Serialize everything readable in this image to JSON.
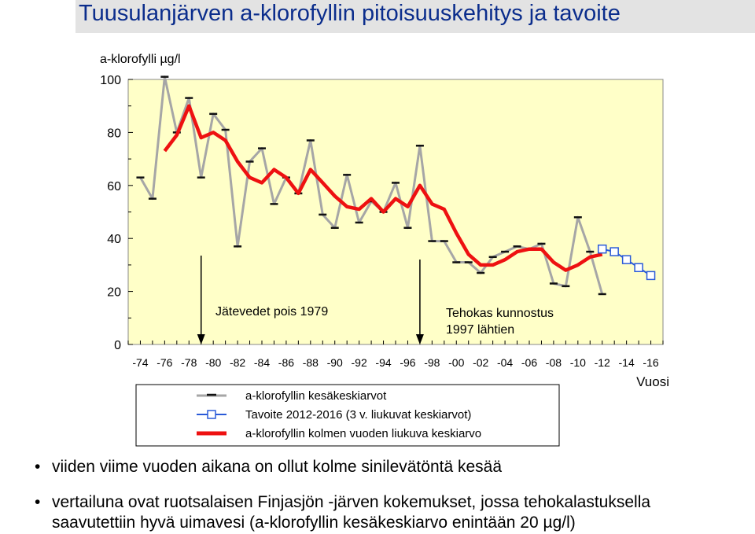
{
  "title": "Tuusulanjärven a-klorofyllin pitoisuuskehitys ja tavoite",
  "chart_data": {
    "type": "line",
    "ylabel": "a-klorofylli µg/l",
    "xlabel": "Vuosi",
    "ylim": [
      0,
      100
    ],
    "y_ticks": [
      "0",
      "20",
      "40",
      "60",
      "80",
      "100"
    ],
    "x_ticks": [
      "-74",
      "-76",
      "-78",
      "-80",
      "-82",
      "-84",
      "-86",
      "-88",
      "-90",
      "-92",
      "-94",
      "-96",
      "-98",
      "-00",
      "-02",
      "-04",
      "-06",
      "-08",
      "-10",
      "-12",
      "-14",
      "-16"
    ],
    "x_tick_years": [
      1974,
      1976,
      1978,
      1980,
      1982,
      1984,
      1986,
      1988,
      1990,
      1992,
      1994,
      1996,
      1998,
      2000,
      2002,
      2004,
      2006,
      2008,
      2010,
      2012,
      2014,
      2016
    ],
    "xlim": [
      1973,
      2017
    ],
    "grid": false,
    "series": [
      {
        "name": "a-klorofyllin kesäkeskiarvot",
        "color": "#a6a6a6",
        "x": [
          1974,
          1975,
          1976,
          1977,
          1978,
          1979,
          1980,
          1981,
          1982,
          1983,
          1984,
          1985,
          1986,
          1987,
          1988,
          1989,
          1990,
          1991,
          1992,
          1993,
          1994,
          1995,
          1996,
          1997,
          1998,
          1999,
          2000,
          2001,
          2002,
          2003,
          2004,
          2005,
          2006,
          2007,
          2008,
          2009,
          2010,
          2011,
          2012
        ],
        "values": [
          63,
          55,
          101,
          80,
          93,
          63,
          87,
          81,
          37,
          69,
          74,
          53,
          63,
          57,
          77,
          49,
          44,
          64,
          46,
          54,
          50,
          61,
          44,
          75,
          39,
          39,
          31,
          31,
          27,
          33,
          35,
          37,
          36,
          38,
          23,
          22,
          48,
          35,
          19
        ]
      },
      {
        "name": "Tavoite 2012-2016 (3 v. liukuvat keskiarvot)",
        "color": "#2a5ad8",
        "x": [
          2012,
          2013,
          2014,
          2015,
          2016
        ],
        "values": [
          36,
          35,
          32,
          29,
          26
        ]
      },
      {
        "name": "a-klorofyllin kolmen vuoden liukuva keskiarvo",
        "color": "#ee1111",
        "x": [
          1976,
          1977,
          1978,
          1979,
          1980,
          1981,
          1982,
          1983,
          1984,
          1985,
          1986,
          1987,
          1988,
          1989,
          1990,
          1991,
          1992,
          1993,
          1994,
          1995,
          1996,
          1997,
          1998,
          1999,
          2000,
          2001,
          2002,
          2003,
          2004,
          2005,
          2006,
          2007,
          2008,
          2009,
          2010,
          2011,
          2012
        ],
        "values": [
          73,
          79,
          90,
          78,
          80,
          77,
          69,
          63,
          61,
          66,
          63,
          57,
          66,
          61,
          56,
          52,
          51,
          55,
          50,
          55,
          52,
          60,
          53,
          51,
          42,
          34,
          30,
          30,
          32,
          35,
          36,
          36,
          31,
          28,
          30,
          33,
          34
        ]
      }
    ],
    "annotations": [
      {
        "text": "Jätevedet pois 1979",
        "year": 1979
      },
      {
        "text_lines": [
          "Tehokas kunnostus",
          "1997 lähtien"
        ],
        "year": 1997
      }
    ],
    "legend": {
      "placement": "bottom",
      "entries": [
        "a-klorofyllin kesäkeskiarvot",
        "Tavoite 2012-2016 (3 v. liukuvat keskiarvot)",
        "a-klorofyllin kolmen vuoden liukuva keskiarvo"
      ]
    }
  },
  "notes": [
    "viiden viime vuoden aikana on ollut kolme sinilevätöntä kesää",
    "vertailuna ovat ruotsalaisen Finjasjön -järven kokemukset, jossa tehokalastuksella",
    "saavutettiin hyvä uimavesi (a-klorofyllin kesäkeskiarvo enintään 20 µg/l)"
  ],
  "bullet_symbol": "•"
}
